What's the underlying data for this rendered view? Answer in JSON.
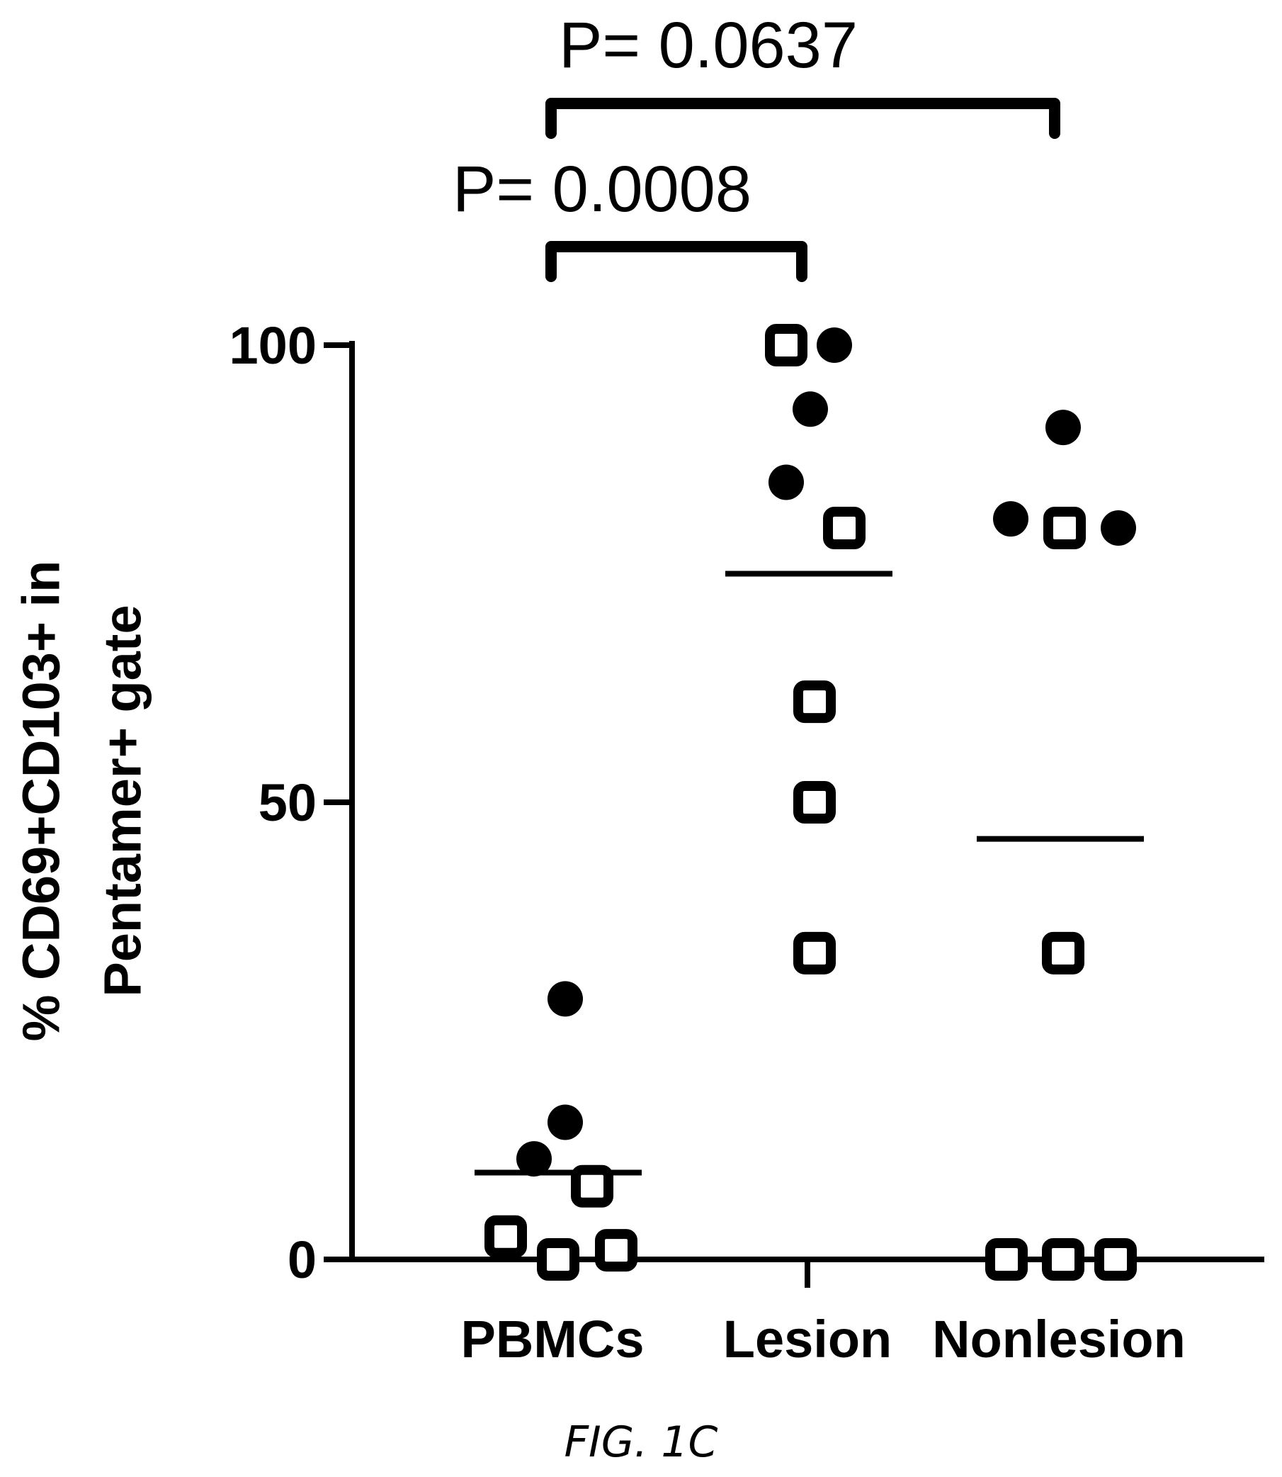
{
  "chart_data": {
    "type": "scatter",
    "ylabel_lines": [
      "% CD69+CD103+ in",
      "Pentamer+ gate"
    ],
    "xlabel": "",
    "categories": [
      "PBMCs",
      "Lesion",
      "Nonlesion"
    ],
    "ylim": [
      0,
      100
    ],
    "yticks": [
      0,
      50,
      100
    ],
    "y_tick_labels": [
      "0",
      "50",
      "100"
    ],
    "grid": false,
    "legend": "none",
    "marker_styles": {
      "circle": "filled black circle",
      "square": "open square with thick black outline"
    },
    "points": [
      {
        "category": "PBMCs",
        "marker": "circle",
        "y": 28.5
      },
      {
        "category": "PBMCs",
        "marker": "circle",
        "y": 15
      },
      {
        "category": "PBMCs",
        "marker": "circle",
        "y": 11
      },
      {
        "category": "PBMCs",
        "marker": "square",
        "y": 8
      },
      {
        "category": "PBMCs",
        "marker": "square",
        "y": 2.5
      },
      {
        "category": "PBMCs",
        "marker": "square",
        "y": 0
      },
      {
        "category": "PBMCs",
        "marker": "square",
        "y": 1
      },
      {
        "category": "Lesion",
        "marker": "square",
        "y": 100
      },
      {
        "category": "Lesion",
        "marker": "circle",
        "y": 100
      },
      {
        "category": "Lesion",
        "marker": "circle",
        "y": 93
      },
      {
        "category": "Lesion",
        "marker": "circle",
        "y": 85
      },
      {
        "category": "Lesion",
        "marker": "square",
        "y": 80
      },
      {
        "category": "Lesion",
        "marker": "square",
        "y": 61
      },
      {
        "category": "Lesion",
        "marker": "square",
        "y": 50
      },
      {
        "category": "Lesion",
        "marker": "square",
        "y": 33.5
      },
      {
        "category": "Nonlesion",
        "marker": "circle",
        "y": 91
      },
      {
        "category": "Nonlesion",
        "marker": "circle",
        "y": 81
      },
      {
        "category": "Nonlesion",
        "marker": "square",
        "y": 80
      },
      {
        "category": "Nonlesion",
        "marker": "circle",
        "y": 80
      },
      {
        "category": "Nonlesion",
        "marker": "square",
        "y": 33.5
      },
      {
        "category": "Nonlesion",
        "marker": "square",
        "y": 0
      },
      {
        "category": "Nonlesion",
        "marker": "square",
        "y": 0
      },
      {
        "category": "Nonlesion",
        "marker": "square",
        "y": 0
      }
    ],
    "means": [
      {
        "category": "PBMCs",
        "y": 9.5
      },
      {
        "category": "Lesion",
        "y": 75
      },
      {
        "category": "Nonlesion",
        "y": 46
      }
    ],
    "annotations": [
      {
        "from": "PBMCs",
        "to": "Lesion",
        "text": "P= 0.0008"
      },
      {
        "from": "PBMCs",
        "to": "Nonlesion",
        "text": "P= 0.0637"
      }
    ]
  },
  "caption": "FIG. 1C",
  "colors": {
    "ink": "#000000",
    "background": "#ffffff"
  }
}
